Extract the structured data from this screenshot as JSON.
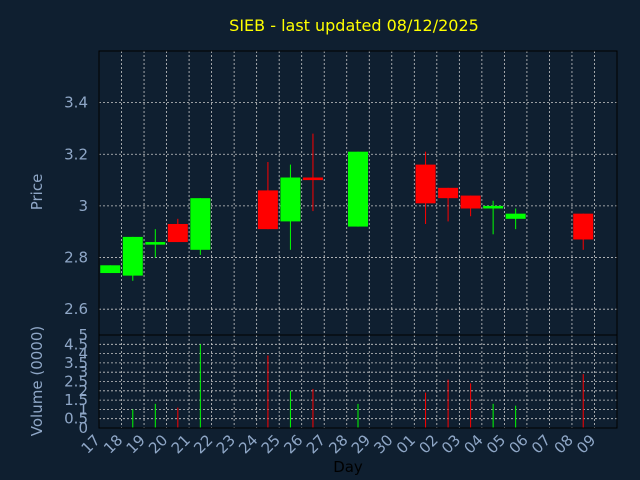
{
  "colors": {
    "background": "#0f1f30",
    "title": "#ffff00",
    "axis_text": "#8fa7c7",
    "up": "#00ff00",
    "down": "#ff0000",
    "grid": "#c8c8c8"
  },
  "chart_data": {
    "type": "candlestick",
    "title": "SIEB - last updated 08/12/2025",
    "xlabel": "Day",
    "ylabel_price": "Price",
    "ylabel_volume": "Volume (0000)",
    "grid": true,
    "x_tick_labels": [
      "17",
      "18",
      "19",
      "20",
      "21",
      "22",
      "23",
      "24",
      "25",
      "26",
      "27",
      "28",
      "29",
      "30",
      "01",
      "02",
      "03",
      "04",
      "05",
      "06",
      "07",
      "08",
      "09"
    ],
    "price_ylim": [
      2.5,
      3.6
    ],
    "price_ticks": [
      2.6,
      2.8,
      3.0,
      3.2,
      3.4
    ],
    "price_tick_labels": [
      "2.6",
      "2.8",
      "3",
      "3.2",
      "3.4"
    ],
    "volume_ylim": [
      0,
      5
    ],
    "volume_ticks": [
      0,
      0.5,
      1,
      1.5,
      2,
      2.5,
      3,
      3.5,
      4,
      4.5,
      5
    ],
    "volume_tick_labels": [
      "0",
      "0.5",
      "1",
      "1.5",
      "2",
      "2.5",
      "3",
      "3.5",
      "4",
      "4.5",
      "5"
    ],
    "candles": [
      {
        "day": "17",
        "open": 2.74,
        "high": 2.77,
        "low": 2.74,
        "close": 2.77,
        "volume": 0
      },
      {
        "day": "18",
        "open": 2.73,
        "high": 2.88,
        "low": 2.71,
        "close": 2.88,
        "volume": 1.0
      },
      {
        "day": "19",
        "open": 2.85,
        "high": 2.91,
        "low": 2.8,
        "close": 2.86,
        "volume": 1.3
      },
      {
        "day": "20",
        "open": 2.93,
        "high": 2.95,
        "low": 2.86,
        "close": 2.86,
        "volume": 1.1
      },
      {
        "day": "21",
        "open": 2.83,
        "high": 3.03,
        "low": 2.81,
        "close": 3.03,
        "volume": 4.5
      },
      {
        "day": "24",
        "open": 3.06,
        "high": 3.17,
        "low": 2.91,
        "close": 2.91,
        "volume": 3.9
      },
      {
        "day": "25",
        "open": 2.94,
        "high": 3.16,
        "low": 2.83,
        "close": 3.11,
        "volume": 2.0
      },
      {
        "day": "26",
        "open": 3.11,
        "high": 3.28,
        "low": 2.98,
        "close": 3.1,
        "volume": 2.1
      },
      {
        "day": "28",
        "open": 2.92,
        "high": 3.21,
        "low": 2.92,
        "close": 3.21,
        "volume": 1.3
      },
      {
        "day": "01",
        "open": 3.16,
        "high": 3.21,
        "low": 2.93,
        "close": 3.01,
        "volume": 1.9
      },
      {
        "day": "02",
        "open": 3.07,
        "high": 3.07,
        "low": 2.94,
        "close": 3.03,
        "volume": 2.6
      },
      {
        "day": "03",
        "open": 3.04,
        "high": 3.04,
        "low": 2.96,
        "close": 2.99,
        "volume": 2.4
      },
      {
        "day": "04",
        "open": 2.99,
        "high": 3.02,
        "low": 2.89,
        "close": 3.0,
        "volume": 1.3
      },
      {
        "day": "05",
        "open": 2.95,
        "high": 2.99,
        "low": 2.91,
        "close": 2.97,
        "volume": 1.2
      },
      {
        "day": "08",
        "open": 2.97,
        "high": 2.97,
        "low": 2.83,
        "close": 2.87,
        "volume": 2.9
      }
    ]
  }
}
